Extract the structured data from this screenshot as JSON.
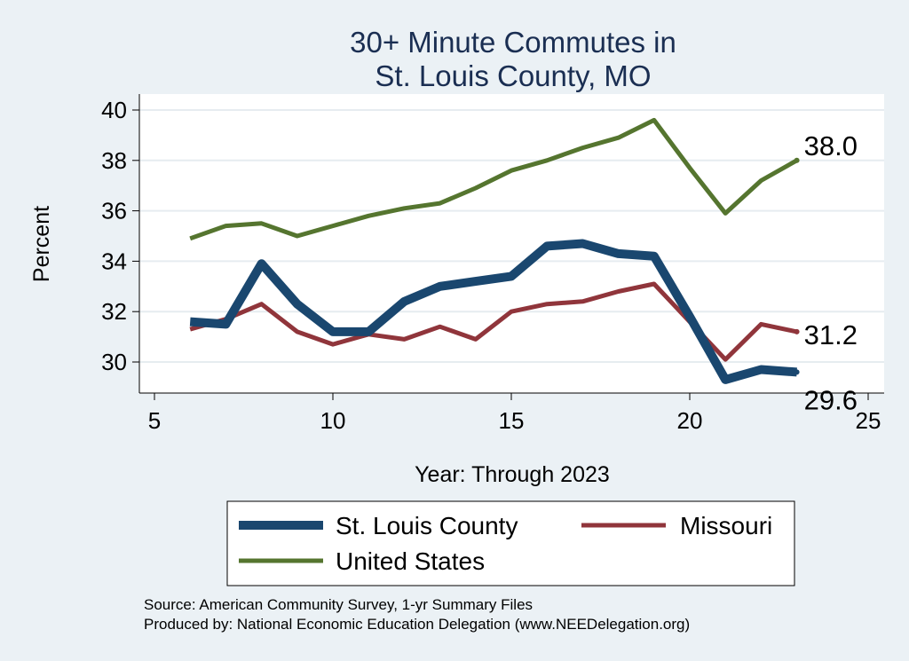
{
  "chart_data": {
    "type": "line",
    "title_lines": [
      "30+ Minute Commutes in",
      "St. Louis County, MO"
    ],
    "xlabel": "Year: Through 2023",
    "ylabel": "Percent",
    "xlim": [
      5,
      25
    ],
    "ylim": [
      28.8,
      40.6
    ],
    "xticks": [
      5,
      10,
      15,
      20,
      25
    ],
    "yticks": [
      30,
      32,
      34,
      36,
      38,
      40
    ],
    "grid": true,
    "x": [
      6,
      7,
      8,
      9,
      10,
      11,
      12,
      13,
      14,
      15,
      16,
      17,
      18,
      19,
      20,
      21,
      22,
      23
    ],
    "series": [
      {
        "name": "St. Louis County",
        "color": "#1a476f",
        "values": [
          31.6,
          31.5,
          33.9,
          32.3,
          31.2,
          31.2,
          32.4,
          33.0,
          33.2,
          33.4,
          34.6,
          34.7,
          34.3,
          34.2,
          31.8,
          29.3,
          29.7,
          29.6
        ],
        "end_label": "29.6"
      },
      {
        "name": "Missouri",
        "color": "#90353b",
        "values": [
          31.3,
          31.7,
          32.3,
          31.2,
          30.7,
          31.1,
          30.9,
          31.4,
          30.9,
          32.0,
          32.3,
          32.4,
          32.8,
          33.1,
          31.6,
          30.1,
          31.5,
          31.2
        ],
        "end_label": "31.2"
      },
      {
        "name": "United States",
        "color": "#55752f",
        "values": [
          34.9,
          35.4,
          35.5,
          35.0,
          35.4,
          35.8,
          36.1,
          36.3,
          36.9,
          37.6,
          38.0,
          38.5,
          38.9,
          39.6,
          37.7,
          35.9,
          37.2,
          38.0
        ],
        "end_label": "38.0"
      }
    ],
    "legend_position": "bottom"
  },
  "source_lines": [
    "Source: American Community Survey, 1-yr Summary Files",
    "Produced by: National Economic Education Delegation (www.NEEDelegation.org)"
  ]
}
